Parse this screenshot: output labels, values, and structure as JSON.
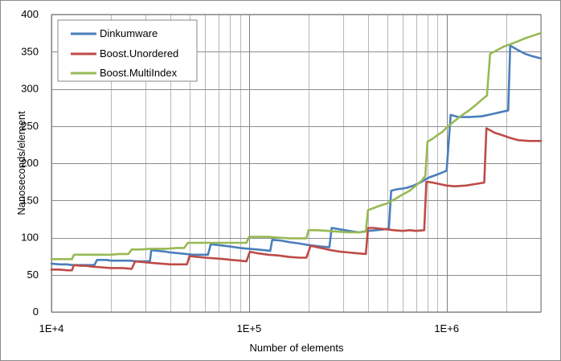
{
  "chart_data": {
    "type": "line",
    "title": "",
    "xlabel": "Number of elements",
    "ylabel": "Nanoseconds/element",
    "x_scale": "log",
    "xlim": [
      10000,
      3000000
    ],
    "ylim": [
      0,
      400
    ],
    "y_ticks": [
      0,
      50,
      100,
      150,
      200,
      250,
      300,
      350,
      400
    ],
    "x_ticks": [
      10000,
      100000,
      1000000
    ],
    "x_tick_labels": [
      "1E+4",
      "1E+5",
      "1E+6"
    ],
    "grid": "major and minor on x, major on y",
    "legend_position": "top-left",
    "series": [
      {
        "name": "Dinkumware",
        "color": "#4a7ebb",
        "points": [
          [
            10000,
            65
          ],
          [
            11000,
            64
          ],
          [
            12000,
            64
          ],
          [
            12700,
            63
          ],
          [
            13000,
            63
          ],
          [
            14000,
            63
          ],
          [
            15500,
            63
          ],
          [
            16500,
            63
          ],
          [
            17000,
            70
          ],
          [
            19000,
            70
          ],
          [
            20000,
            69
          ],
          [
            22000,
            69
          ],
          [
            25000,
            69
          ],
          [
            27000,
            68
          ],
          [
            31500,
            68
          ],
          [
            32000,
            83
          ],
          [
            35000,
            82
          ],
          [
            38000,
            81
          ],
          [
            40000,
            80
          ],
          [
            44000,
            79
          ],
          [
            48000,
            78
          ],
          [
            52000,
            77
          ],
          [
            57000,
            77
          ],
          [
            62000,
            77
          ],
          [
            64000,
            91
          ],
          [
            70000,
            90
          ],
          [
            80000,
            88
          ],
          [
            90000,
            86
          ],
          [
            100000,
            85
          ],
          [
            110000,
            84
          ],
          [
            120000,
            83
          ],
          [
            128000,
            82
          ],
          [
            131000,
            97
          ],
          [
            145000,
            96
          ],
          [
            160000,
            94
          ],
          [
            180000,
            92
          ],
          [
            200000,
            90
          ],
          [
            230000,
            88
          ],
          [
            255000,
            87
          ],
          [
            262000,
            113
          ],
          [
            290000,
            111
          ],
          [
            320000,
            109
          ],
          [
            360000,
            107
          ],
          [
            400000,
            109
          ],
          [
            440000,
            110
          ],
          [
            480000,
            111
          ],
          [
            510000,
            112
          ],
          [
            524000,
            163
          ],
          [
            560000,
            165
          ],
          [
            600000,
            166
          ],
          [
            630000,
            167
          ],
          [
            680000,
            170
          ],
          [
            750000,
            175
          ],
          [
            800000,
            180
          ],
          [
            900000,
            185
          ],
          [
            1000000,
            190
          ],
          [
            1048000,
            265
          ],
          [
            1150000,
            262
          ],
          [
            1300000,
            262
          ],
          [
            1500000,
            263
          ],
          [
            1700000,
            266
          ],
          [
            1900000,
            269
          ],
          [
            2050000,
            271
          ],
          [
            2097000,
            358
          ],
          [
            2300000,
            352
          ],
          [
            2500000,
            347
          ],
          [
            2700000,
            344
          ],
          [
            2900000,
            342
          ],
          [
            3000000,
            341
          ]
        ]
      },
      {
        "name": "Boost.Unordered",
        "color": "#be4b48",
        "points": [
          [
            10000,
            57
          ],
          [
            11000,
            57
          ],
          [
            12000,
            56
          ],
          [
            12700,
            56
          ],
          [
            13000,
            63
          ],
          [
            14000,
            62
          ],
          [
            15000,
            62
          ],
          [
            16000,
            61
          ],
          [
            18000,
            60
          ],
          [
            20000,
            59
          ],
          [
            23000,
            59
          ],
          [
            25500,
            58
          ],
          [
            26500,
            68
          ],
          [
            29000,
            67
          ],
          [
            32000,
            66
          ],
          [
            36000,
            65
          ],
          [
            40000,
            64
          ],
          [
            44000,
            64
          ],
          [
            48500,
            64
          ],
          [
            50000,
            75
          ],
          [
            55000,
            74
          ],
          [
            60000,
            73
          ],
          [
            68000,
            72
          ],
          [
            75000,
            71
          ],
          [
            82000,
            70
          ],
          [
            90000,
            69
          ],
          [
            97000,
            68
          ],
          [
            101000,
            81
          ],
          [
            110000,
            79
          ],
          [
            125000,
            77
          ],
          [
            140000,
            76
          ],
          [
            160000,
            74
          ],
          [
            180000,
            73
          ],
          [
            195000,
            73
          ],
          [
            205000,
            89
          ],
          [
            230000,
            86
          ],
          [
            260000,
            83
          ],
          [
            290000,
            81
          ],
          [
            320000,
            80
          ],
          [
            350000,
            79
          ],
          [
            390000,
            78
          ],
          [
            400000,
            113
          ],
          [
            430000,
            113
          ],
          [
            460000,
            112
          ],
          [
            500000,
            111
          ],
          [
            540000,
            110
          ],
          [
            600000,
            109
          ],
          [
            650000,
            110
          ],
          [
            700000,
            109
          ],
          [
            770000,
            110
          ],
          [
            790000,
            175
          ],
          [
            850000,
            174
          ],
          [
            920000,
            172
          ],
          [
            1000000,
            170
          ],
          [
            1100000,
            169
          ],
          [
            1250000,
            170
          ],
          [
            1400000,
            172
          ],
          [
            1550000,
            174
          ],
          [
            1590000,
            247
          ],
          [
            1750000,
            241
          ],
          [
            1900000,
            238
          ],
          [
            2100000,
            234
          ],
          [
            2300000,
            231
          ],
          [
            2600000,
            230
          ],
          [
            3000000,
            230
          ]
        ]
      },
      {
        "name": "Boost.MultiIndex",
        "color": "#98b954",
        "points": [
          [
            10000,
            71
          ],
          [
            11000,
            71
          ],
          [
            12000,
            71
          ],
          [
            12700,
            71
          ],
          [
            13000,
            77
          ],
          [
            14000,
            77
          ],
          [
            16000,
            77
          ],
          [
            18000,
            77
          ],
          [
            20000,
            77
          ],
          [
            22000,
            78
          ],
          [
            24500,
            78
          ],
          [
            25500,
            84
          ],
          [
            28000,
            84
          ],
          [
            32000,
            85
          ],
          [
            38000,
            85
          ],
          [
            43000,
            86
          ],
          [
            47000,
            86
          ],
          [
            49000,
            93
          ],
          [
            55000,
            93
          ],
          [
            62000,
            93
          ],
          [
            70000,
            93
          ],
          [
            80000,
            93
          ],
          [
            90000,
            93
          ],
          [
            97000,
            93
          ],
          [
            100000,
            101
          ],
          [
            110000,
            101
          ],
          [
            125000,
            101
          ],
          [
            140000,
            100
          ],
          [
            160000,
            99
          ],
          [
            180000,
            99
          ],
          [
            195000,
            99
          ],
          [
            200000,
            110
          ],
          [
            220000,
            110
          ],
          [
            250000,
            109
          ],
          [
            280000,
            108
          ],
          [
            320000,
            107
          ],
          [
            360000,
            107
          ],
          [
            390000,
            108
          ],
          [
            400000,
            137
          ],
          [
            430000,
            140
          ],
          [
            460000,
            143
          ],
          [
            500000,
            146
          ],
          [
            550000,
            152
          ],
          [
            600000,
            158
          ],
          [
            650000,
            163
          ],
          [
            700000,
            170
          ],
          [
            750000,
            177
          ],
          [
            780000,
            183
          ],
          [
            800000,
            229
          ],
          [
            850000,
            233
          ],
          [
            900000,
            238
          ],
          [
            950000,
            242
          ],
          [
            1000000,
            248
          ],
          [
            1100000,
            257
          ],
          [
            1200000,
            265
          ],
          [
            1300000,
            271
          ],
          [
            1400000,
            278
          ],
          [
            1500000,
            285
          ],
          [
            1600000,
            291
          ],
          [
            1660000,
            347
          ],
          [
            1800000,
            352
          ],
          [
            1950000,
            357
          ],
          [
            2100000,
            360
          ],
          [
            2300000,
            364
          ],
          [
            2500000,
            368
          ],
          [
            2700000,
            371
          ],
          [
            3000000,
            375
          ]
        ]
      }
    ]
  }
}
